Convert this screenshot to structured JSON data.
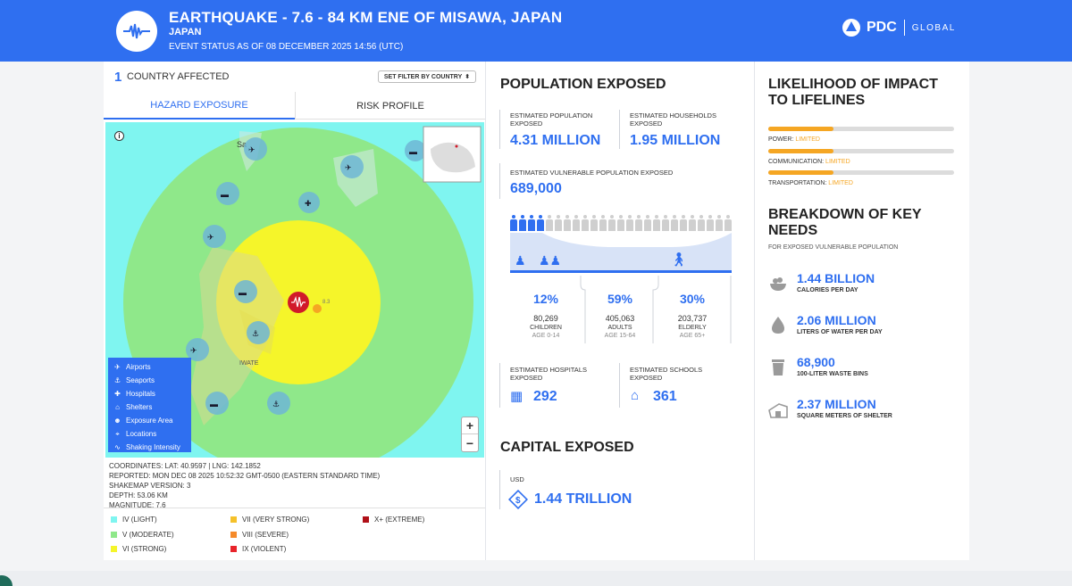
{
  "header": {
    "title": "EARTHQUAKE - 7.6 - 84 KM ENE OF MISAWA, JAPAN",
    "country": "JAPAN",
    "status": "EVENT STATUS AS OF 08 DECEMBER 2025 14:56 (UTC)",
    "brand": "PDC",
    "brand_sub": "GLOBAL"
  },
  "left": {
    "countries_count": "1",
    "countries_label": "COUNTRY AFFECTED",
    "filter_label": "SET FILTER BY COUNTRY",
    "tabs": [
      "HAZARD EXPOSURE",
      "RISK PROFILE"
    ],
    "map": {
      "place_labels": [
        "Sa",
        "IWATE"
      ],
      "epicenter_label": "8.3",
      "legend": [
        "Airports",
        "Seaports",
        "Hospitals",
        "Shelters",
        "Exposure Area",
        "Locations",
        "Shaking Intensity"
      ],
      "zoom_in": "+",
      "zoom_out": "−",
      "info": "i"
    },
    "details": [
      "COORDINATES: LAT: 40.9597 | LNG: 142.1852",
      "REPORTED: MON DEC 08 2025 10:52:32 GMT-0500 (EASTERN STANDARD TIME)",
      "SHAKEMAP VERSION: 3",
      "DEPTH: 53.06 KM",
      "MAGNITUDE: 7.6"
    ],
    "intensity": [
      {
        "label": "IV (LIGHT)",
        "color": "#7ff5f0"
      },
      {
        "label": "V (MODERATE)",
        "color": "#8fe88a"
      },
      {
        "label": "VI (STRONG)",
        "color": "#f5f52a"
      },
      {
        "label": "VII (VERY STRONG)",
        "color": "#f5c12a"
      },
      {
        "label": "VIII (SEVERE)",
        "color": "#f58a2a"
      },
      {
        "label": "IX (VIOLENT)",
        "color": "#e8232a"
      },
      {
        "label": "X+ (EXTREME)",
        "color": "#b01018"
      }
    ]
  },
  "population": {
    "title": "POPULATION EXPOSED",
    "est_pop_label": "ESTIMATED POPULATION EXPOSED",
    "est_pop_value": "4.31 MILLION",
    "households_label": "ESTIMATED HOUSEHOLDS EXPOSED",
    "households_value": "1.95 MILLION",
    "vulnerable_label": "ESTIMATED VULNERABLE POPULATION EXPOSED",
    "vulnerable_value": "689,000",
    "groups": [
      {
        "pct": "12%",
        "count": "80,269",
        "name": "CHILDREN",
        "age": "AGE 0-14"
      },
      {
        "pct": "59%",
        "count": "405,063",
        "name": "ADULTS",
        "age": "AGE 15-64"
      },
      {
        "pct": "30%",
        "count": "203,737",
        "name": "ELDERLY",
        "age": "AGE 65+"
      }
    ],
    "hospitals_label": "ESTIMATED HOSPITALS EXPOSED",
    "hospitals_value": "292",
    "schools_label": "ESTIMATED SCHOOLS EXPOSED",
    "schools_value": "361"
  },
  "capital": {
    "title": "CAPITAL EXPOSED",
    "currency": "USD",
    "value": "1.44 TRILLION"
  },
  "lifelines": {
    "title": "LIKELIHOOD OF IMPACT TO LIFELINES",
    "items": [
      {
        "name": "POWER:",
        "level": "LIMITED",
        "fill_fraction": 0.35
      },
      {
        "name": "COMMUNICATION:",
        "level": "LIMITED",
        "fill_fraction": 0.35
      },
      {
        "name": "TRANSPORTATION:",
        "level": "LIMITED",
        "fill_fraction": 0.35
      }
    ]
  },
  "needs": {
    "title": "BREAKDOWN OF KEY NEEDS",
    "subtitle": "FOR EXPOSED VULNERABLE POPULATION",
    "items": [
      {
        "value": "1.44 BILLION",
        "label": "CALORIES PER DAY",
        "icon": "food-bowl-icon"
      },
      {
        "value": "2.06 MILLION",
        "label": "LITERS OF WATER PER DAY",
        "icon": "water-drop-icon"
      },
      {
        "value": "68,900",
        "label": "100-LITER WASTE BINS",
        "icon": "waste-bin-icon"
      },
      {
        "value": "2.37 MILLION",
        "label": "SQUARE METERS OF SHELTER",
        "icon": "shelter-icon"
      }
    ]
  }
}
